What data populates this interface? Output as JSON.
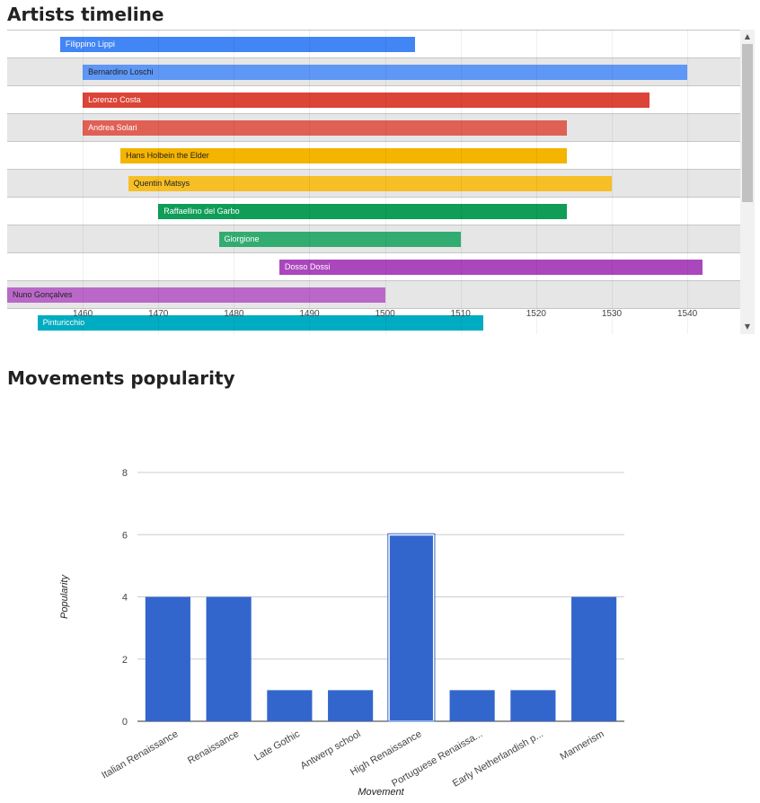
{
  "timeline": {
    "title": "Artists timeline",
    "range": [
      1450,
      1547
    ],
    "ticks": [
      1460,
      1470,
      1480,
      1490,
      1500,
      1510,
      1520,
      1530,
      1540
    ],
    "rows": [
      {
        "label": "Filippino Lippi",
        "start": 1457,
        "end": 1504,
        "color": "#4285f4",
        "text_color": "#ffffff"
      },
      {
        "label": "Bernardino Loschi",
        "start": 1460,
        "end": 1540,
        "color": "#5e97f6",
        "text_color": "#222222"
      },
      {
        "label": "Lorenzo Costa",
        "start": 1460,
        "end": 1535,
        "color": "#db4437",
        "text_color": "#ffffff"
      },
      {
        "label": "Andrea Solari",
        "start": 1460,
        "end": 1524,
        "color": "#e06055",
        "text_color": "#ffffff"
      },
      {
        "label": "Hans Holbein the Elder",
        "start": 1465,
        "end": 1524,
        "color": "#f4b400",
        "text_color": "#222222"
      },
      {
        "label": "Quentin Matsys",
        "start": 1466,
        "end": 1530,
        "color": "#f6bf26",
        "text_color": "#222222"
      },
      {
        "label": "Raffaellino del Garbo",
        "start": 1470,
        "end": 1524,
        "color": "#0f9d58",
        "text_color": "#ffffff"
      },
      {
        "label": "Giorgione",
        "start": 1478,
        "end": 1510,
        "color": "#33ac71",
        "text_color": "#ffffff"
      },
      {
        "label": "Dosso Dossi",
        "start": 1486,
        "end": 1542,
        "color": "#ab47bc",
        "text_color": "#ffffff"
      },
      {
        "label": "Nuno Gonçalves",
        "start": 1450,
        "end": 1500,
        "color": "#ba68c8",
        "text_color": "#222222"
      },
      {
        "label": "Pinturicchio",
        "start": 1454,
        "end": 1513,
        "color": "#00acc1",
        "text_color": "#ffffff"
      }
    ]
  },
  "chart_data": {
    "type": "bar",
    "title": "Movements popularity",
    "xlabel": "Movement",
    "ylabel": "Popularity",
    "ylim": [
      0,
      8
    ],
    "yticks": [
      0,
      2,
      4,
      6,
      8
    ],
    "categories": [
      "Italian Renaissance",
      "Renaissance",
      "Late Gothic",
      "Antwerp school",
      "High Renaissance",
      "Portuguese Renaissa...",
      "Early Netherlandish p...",
      "Mannerism"
    ],
    "values": [
      4,
      4,
      1,
      1,
      6,
      1,
      1,
      4
    ],
    "highlighted_index": 4,
    "bar_color": "#3366cc",
    "grid": true
  }
}
